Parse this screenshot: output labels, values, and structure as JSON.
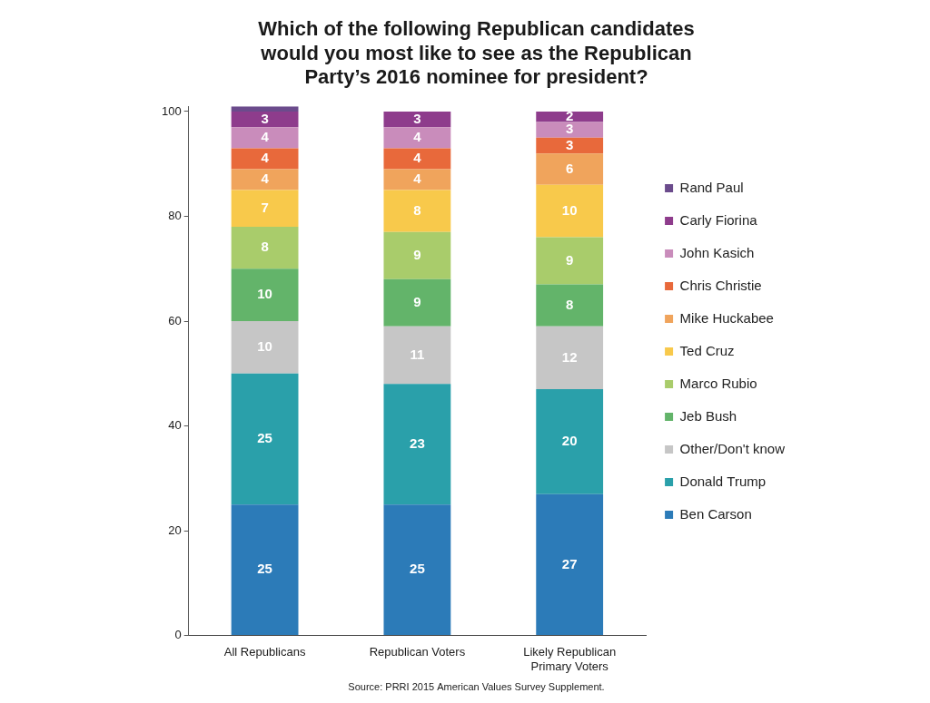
{
  "chart_data": {
    "type": "bar",
    "title": "Which of the following Republican candidates would you most like to see as the Republican Party’s 2016 nominee for president?",
    "source": "Source: PRRI 2015 American Values Survey Supplement.",
    "categories": [
      "All Republicans",
      "Republican Voters",
      "Likely Republican Primary Voters"
    ],
    "stacked": true,
    "data_labels": true,
    "grid": false,
    "legend": "right",
    "ylim": [
      0,
      101
    ],
    "yticks": [
      0,
      20,
      40,
      60,
      80,
      100
    ],
    "series": [
      {
        "name": "Ben Carson",
        "color": "#2c7bb8",
        "values": [
          25,
          25,
          27
        ]
      },
      {
        "name": "Donald Trump",
        "color": "#2aa0aa",
        "values": [
          25,
          23,
          20
        ]
      },
      {
        "name": "Other/Don't know",
        "color": "#c6c6c6",
        "values": [
          10,
          11,
          12
        ]
      },
      {
        "name": "Jeb Bush",
        "color": "#63b46a",
        "values": [
          10,
          9,
          8
        ]
      },
      {
        "name": "Marco Rubio",
        "color": "#a9cc6b",
        "values": [
          8,
          9,
          9
        ]
      },
      {
        "name": "Ted Cruz",
        "color": "#f8c94b",
        "values": [
          7,
          8,
          10
        ]
      },
      {
        "name": "Mike Huckabee",
        "color": "#f0a45c",
        "values": [
          4,
          4,
          6
        ]
      },
      {
        "name": "Chris Christie",
        "color": "#e8693b",
        "values": [
          4,
          4,
          3
        ]
      },
      {
        "name": "John Kasich",
        "color": "#c98cbb",
        "values": [
          4,
          4,
          3
        ]
      },
      {
        "name": "Carly Fiorina",
        "color": "#8e3c8c",
        "values": [
          3,
          3,
          2
        ]
      },
      {
        "name": "Rand Paul",
        "color": "#6b4b8c",
        "values": [
          1,
          0,
          0
        ],
        "data_labels": false
      }
    ]
  }
}
